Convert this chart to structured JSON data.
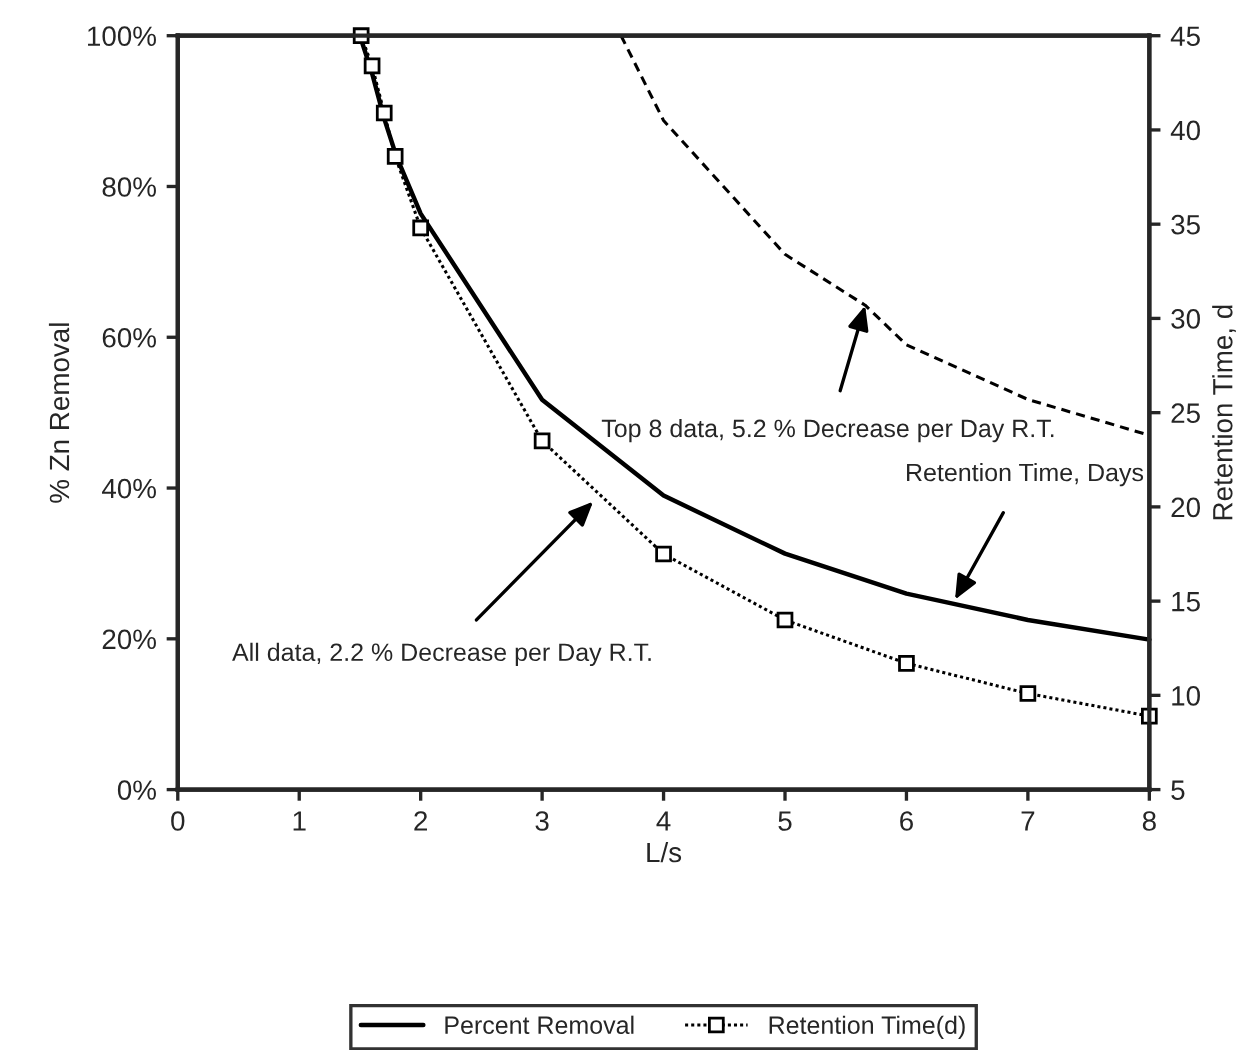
{
  "chart_data": {
    "type": "line",
    "xlabel": "L/s",
    "ylabel": "% Zn Removal",
    "y2label": "Retention Time, d",
    "xlim": [
      0,
      8
    ],
    "xticks": [
      0,
      1,
      2,
      3,
      4,
      5,
      6,
      7,
      8
    ],
    "ylim": [
      0,
      100
    ],
    "yticks": [
      {
        "value": 0,
        "label": "0%"
      },
      {
        "value": 20,
        "label": "20%"
      },
      {
        "value": 40,
        "label": "40%"
      },
      {
        "value": 60,
        "label": "60%"
      },
      {
        "value": 80,
        "label": "80%"
      },
      {
        "value": 100,
        "label": "100%"
      }
    ],
    "y2lim": [
      5,
      45
    ],
    "y2ticks": [
      5,
      10,
      15,
      20,
      25,
      30,
      35,
      40,
      45
    ],
    "grid": false,
    "legend": "bottom",
    "series": [
      {
        "name": "Percent Removal",
        "color": "#000000",
        "marker": "none",
        "line_style": "solid",
        "x": [
          1.5,
          1.6,
          1.7,
          1.8,
          2,
          3,
          4,
          5,
          6,
          7,
          8
        ],
        "values": [
          100,
          95,
          89,
          84,
          76.4,
          51.7,
          39,
          31.3,
          26,
          22.5,
          19.9
        ]
      },
      {
        "name": "Retention Time(d)",
        "color": "#000000",
        "marker": "square",
        "line_style": "dotted",
        "axis": "y2",
        "x": [
          1.51,
          1.6,
          1.7,
          1.79,
          2,
          3,
          4,
          5,
          6,
          7,
          8
        ],
        "values": [
          45,
          43.4,
          40.9,
          38.6,
          34.8,
          23.5,
          17.5,
          14,
          11.7,
          10.1,
          8.9
        ]
      },
      {
        "color": "#000000",
        "marker": "none",
        "line_style": "dashed",
        "axis": "y2",
        "x": [
          3.65,
          4,
          5,
          5.66,
          6,
          7,
          8
        ],
        "values": [
          45,
          40.5,
          33.4,
          30.7,
          28.6,
          25.7,
          23.8
        ]
      }
    ],
    "annotations": [
      {
        "text": "Top 8 data, 5.2 % Decrease per Day R.T.",
        "x": 5.66,
        "y": 64.2
      },
      {
        "text": "All data, 2.2 % Decrease per Day R.T.",
        "x": 3.42,
        "y": 38.2
      },
      {
        "text": "Retention Time, Days",
        "x": 6.4,
        "y": 25.2
      }
    ]
  }
}
